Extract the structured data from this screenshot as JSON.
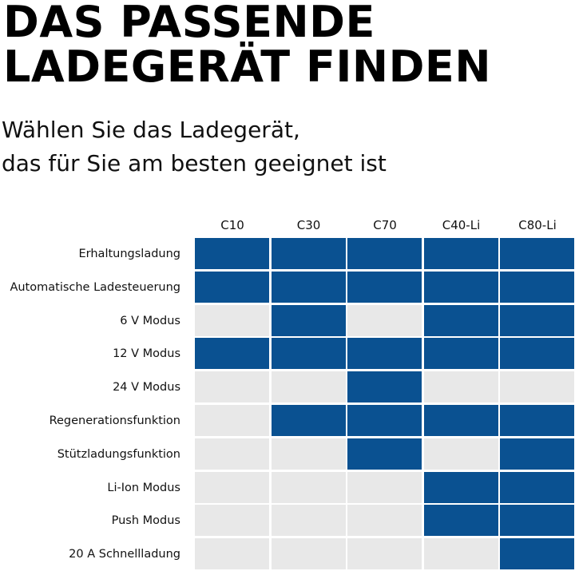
{
  "headline": {
    "line1": "DAS PASSENDE",
    "line2": "LADEGERÄT FINDEN"
  },
  "subline": {
    "line1": "Wählen Sie das Ladegerät,",
    "line2": "das für Sie am besten geeignet ist"
  },
  "colors": {
    "active": "#0a5191",
    "inactive": "#e8e8e8"
  },
  "chart_data": {
    "type": "table",
    "columns": [
      "C10",
      "C30",
      "C70",
      "C40-Li",
      "C80-Li"
    ],
    "rows": [
      {
        "label": "Erhaltungsladung",
        "values": [
          1,
          1,
          1,
          1,
          1
        ]
      },
      {
        "label": "Automatische Ladesteuerung",
        "values": [
          1,
          1,
          1,
          1,
          1
        ]
      },
      {
        "label": "6 V Modus",
        "values": [
          0,
          1,
          0,
          1,
          1
        ]
      },
      {
        "label": "12 V Modus",
        "values": [
          1,
          1,
          1,
          1,
          1
        ]
      },
      {
        "label": "24 V Modus",
        "values": [
          0,
          0,
          1,
          0,
          0
        ]
      },
      {
        "label": "Regenerationsfunktion",
        "values": [
          0,
          1,
          1,
          1,
          1
        ]
      },
      {
        "label": "Stützladungsfunktion",
        "values": [
          0,
          0,
          1,
          0,
          1
        ]
      },
      {
        "label": "Li-Ion Modus",
        "values": [
          0,
          0,
          0,
          1,
          1
        ]
      },
      {
        "label": "Push Modus",
        "values": [
          0,
          0,
          0,
          1,
          1
        ]
      },
      {
        "label": "20 A Schnellladung",
        "values": [
          0,
          0,
          0,
          0,
          1
        ]
      }
    ]
  }
}
